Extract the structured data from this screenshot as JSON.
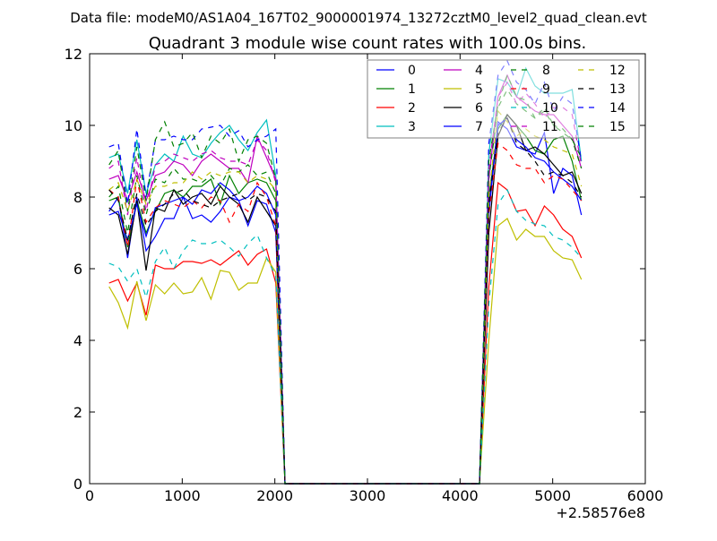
{
  "chart_data": {
    "type": "line",
    "suptitle": "Data file: modeM0/AS1A04_167T02_9000001974_13272cztM0_level2_quad_clean.evt",
    "title": "Quadrant 3 module wise count rates with 100.0s bins.",
    "xlabel": "",
    "ylabel": "",
    "x_offset_label": "+2.58576e8",
    "xlim": [
      0,
      6000
    ],
    "ylim": [
      0,
      12
    ],
    "xticks": [
      "0",
      "1000",
      "2000",
      "3000",
      "4000",
      "5000",
      "6000"
    ],
    "yticks": [
      "0",
      "2",
      "4",
      "6",
      "8",
      "10",
      "12"
    ],
    "grid": false,
    "legend_placement": "top-right",
    "legend_columns": 4,
    "x_start": 210,
    "x_step": 100,
    "series": [
      {
        "name": "0",
        "color": "#0000ff",
        "dash": false,
        "values": [
          7.6,
          8.0,
          6.3,
          8.0,
          6.5,
          6.9,
          7.4,
          7.4,
          8.0,
          7.4,
          7.5,
          7.3,
          7.6,
          8.0,
          7.9,
          7.2,
          7.9,
          7.8,
          7.0,
          0,
          0,
          0,
          0,
          0,
          0,
          0,
          0,
          0,
          0,
          0,
          0,
          0,
          0,
          0,
          0,
          0,
          0,
          0,
          0,
          0,
          0,
          7.5,
          10.1,
          9.9,
          9.4,
          9.3,
          9.2,
          9.8,
          8.1,
          8.8,
          8.6,
          7.5
        ]
      },
      {
        "name": "1",
        "color": "#008000",
        "dash": false,
        "values": [
          7.9,
          8.0,
          6.6,
          7.9,
          7.0,
          7.6,
          8.1,
          8.2,
          8.0,
          8.3,
          8.3,
          8.5,
          7.8,
          8.6,
          8.1,
          8.4,
          8.5,
          8.4,
          7.9,
          0,
          0,
          0,
          0,
          0,
          0,
          0,
          0,
          0,
          0,
          0,
          0,
          0,
          0,
          0,
          0,
          0,
          0,
          0,
          0,
          0,
          0,
          8.0,
          9.9,
          10.3,
          10.0,
          9.7,
          9.3,
          9.2,
          9.6,
          9.7,
          9.0,
          7.9
        ]
      },
      {
        "name": "2",
        "color": "#ff0000",
        "dash": false,
        "values": [
          5.6,
          5.7,
          5.1,
          5.6,
          4.7,
          6.1,
          6.0,
          6.0,
          6.2,
          6.2,
          6.15,
          6.25,
          6.1,
          6.3,
          6.5,
          6.1,
          6.4,
          6.55,
          5.6,
          0,
          0,
          0,
          0,
          0,
          0,
          0,
          0,
          0,
          0,
          0,
          0,
          0,
          0,
          0,
          0,
          0,
          0,
          0,
          0,
          0,
          0,
          5.5,
          8.4,
          8.2,
          7.6,
          7.65,
          7.2,
          7.75,
          7.5,
          7.1,
          6.9,
          6.3
        ]
      },
      {
        "name": "3",
        "color": "#00bfbf",
        "dash": false,
        "values": [
          9.1,
          9.2,
          8.1,
          9.6,
          8.1,
          8.9,
          9.2,
          9.0,
          9.7,
          9.2,
          9.1,
          9.5,
          9.8,
          10.0,
          9.6,
          9.3,
          9.8,
          10.15,
          8.6,
          0,
          0,
          0,
          0,
          0,
          0,
          0,
          0,
          0,
          0,
          0,
          0,
          0,
          0,
          0,
          0,
          0,
          0,
          0,
          0,
          0,
          0,
          9.2,
          11.3,
          11.2,
          10.8,
          11.6,
          11.1,
          10.9,
          10.9,
          10.9,
          11.0,
          9.0
        ]
      },
      {
        "name": "4",
        "color": "#bf00bf",
        "dash": false,
        "values": [
          8.5,
          8.6,
          7.9,
          8.7,
          7.9,
          8.6,
          8.7,
          9.0,
          8.9,
          8.6,
          9.0,
          9.2,
          9.0,
          8.8,
          8.8,
          8.4,
          9.7,
          9.1,
          8.5,
          0,
          0,
          0,
          0,
          0,
          0,
          0,
          0,
          0,
          0,
          0,
          0,
          0,
          0,
          0,
          0,
          0,
          0,
          0,
          0,
          0,
          0,
          8.5,
          10.8,
          11.4,
          10.8,
          10.6,
          10.4,
          10.3,
          10.3,
          10.0,
          9.7,
          8.8
        ]
      },
      {
        "name": "5",
        "color": "#bfbf00",
        "dash": false,
        "values": [
          5.5,
          5.05,
          4.35,
          5.65,
          4.55,
          5.55,
          5.3,
          5.6,
          5.3,
          5.35,
          5.75,
          5.15,
          5.95,
          5.9,
          5.4,
          5.6,
          5.6,
          6.3,
          5.9,
          0,
          0,
          0,
          0,
          0,
          0,
          0,
          0,
          0,
          0,
          0,
          0,
          0,
          0,
          0,
          0,
          0,
          0,
          0,
          0,
          0,
          0,
          4.0,
          7.2,
          7.4,
          6.8,
          7.1,
          6.9,
          6.9,
          6.5,
          6.3,
          6.25,
          5.7
        ]
      },
      {
        "name": "6",
        "color": "#000000",
        "dash": false,
        "values": [
          7.7,
          7.5,
          6.4,
          7.9,
          5.95,
          7.7,
          7.6,
          8.2,
          7.8,
          8.0,
          8.1,
          7.8,
          8.3,
          8.0,
          7.8,
          7.3,
          8.0,
          7.6,
          7.2,
          0,
          0,
          0,
          0,
          0,
          0,
          0,
          0,
          0,
          0,
          0,
          0,
          0,
          0,
          0,
          0,
          0,
          0,
          0,
          0,
          0,
          0,
          7.0,
          9.7,
          10.3,
          10.0,
          9.3,
          9.4,
          9.2,
          8.9,
          8.6,
          8.7,
          8.1
        ]
      },
      {
        "name": "7",
        "color": "#0000ff",
        "dash": false,
        "values": [
          7.5,
          7.6,
          6.8,
          7.8,
          6.9,
          7.7,
          7.8,
          7.9,
          8.0,
          7.8,
          8.2,
          8.1,
          8.4,
          8.2,
          7.9,
          8.0,
          8.3,
          8.1,
          7.5,
          0,
          0,
          0,
          0,
          0,
          0,
          0,
          0,
          0,
          0,
          0,
          0,
          0,
          0,
          0,
          0,
          0,
          0,
          0,
          0,
          0,
          0,
          7.8,
          10.0,
          10.2,
          9.6,
          9.4,
          9.1,
          9.0,
          8.7,
          8.5,
          8.3,
          7.9
        ]
      },
      {
        "name": "8",
        "color": "#008000",
        "dash": true,
        "values": [
          8.0,
          8.3,
          7.0,
          8.6,
          7.5,
          8.5,
          8.4,
          8.8,
          8.5,
          8.5,
          8.4,
          8.6,
          8.3,
          8.8,
          8.7,
          8.9,
          8.6,
          8.7,
          8.1,
          0,
          0,
          0,
          0,
          0,
          0,
          0,
          0,
          0,
          0,
          0,
          0,
          0,
          0,
          0,
          0,
          0,
          0,
          0,
          0,
          0,
          0,
          8.5,
          10.5,
          11.0,
          10.6,
          10.4,
          10.2,
          10.4,
          10.0,
          9.9,
          9.6,
          8.8
        ]
      },
      {
        "name": "9",
        "color": "#ff0000",
        "dash": true,
        "values": [
          8.2,
          8.0,
          6.6,
          8.5,
          7.3,
          7.7,
          7.9,
          7.8,
          7.7,
          7.9,
          7.7,
          8.0,
          7.9,
          7.3,
          7.8,
          7.6,
          8.4,
          8.0,
          7.2,
          0,
          0,
          0,
          0,
          0,
          0,
          0,
          0,
          0,
          0,
          0,
          0,
          0,
          0,
          0,
          0,
          0,
          0,
          0,
          0,
          0,
          0,
          7.5,
          9.5,
          9.3,
          8.9,
          8.8,
          8.8,
          8.4,
          8.6,
          8.5,
          8.2,
          7.9
        ]
      },
      {
        "name": "10",
        "color": "#00bfbf",
        "dash": true,
        "values": [
          6.15,
          6.05,
          5.65,
          6.0,
          5.2,
          6.2,
          6.6,
          6.0,
          6.5,
          6.8,
          6.7,
          6.7,
          6.8,
          6.6,
          6.35,
          6.7,
          6.95,
          6.3,
          5.8,
          0,
          0,
          0,
          0,
          0,
          0,
          0,
          0,
          0,
          0,
          0,
          0,
          0,
          0,
          0,
          0,
          0,
          0,
          0,
          0,
          0,
          0,
          5.0,
          7.8,
          8.2,
          7.6,
          7.35,
          7.25,
          7.2,
          6.9,
          6.8,
          6.6,
          6.3
        ]
      },
      {
        "name": "11",
        "color": "#bf00bf",
        "dash": true,
        "values": [
          8.8,
          9.0,
          7.5,
          9.1,
          7.6,
          8.9,
          9.0,
          9.2,
          9.1,
          9.0,
          9.2,
          9.3,
          9.1,
          9.0,
          9.0,
          8.9,
          9.6,
          9.3,
          8.4,
          0,
          0,
          0,
          0,
          0,
          0,
          0,
          0,
          0,
          0,
          0,
          0,
          0,
          0,
          0,
          0,
          0,
          0,
          0,
          0,
          0,
          0,
          8.8,
          10.8,
          11.2,
          10.6,
          10.9,
          10.6,
          10.2,
          10.5,
          10.5,
          10.3,
          8.9
        ]
      },
      {
        "name": "12",
        "color": "#bfbf00",
        "dash": true,
        "values": [
          8.2,
          8.4,
          7.6,
          8.5,
          7.8,
          8.3,
          8.3,
          8.4,
          8.4,
          8.7,
          8.5,
          8.7,
          8.6,
          8.7,
          8.7,
          8.4,
          8.6,
          8.5,
          8.2,
          0,
          0,
          0,
          0,
          0,
          0,
          0,
          0,
          0,
          0,
          0,
          0,
          0,
          0,
          0,
          0,
          0,
          0,
          0,
          0,
          0,
          0,
          8.0,
          10.4,
          10.1,
          9.7,
          9.9,
          9.7,
          9.6,
          9.4,
          9.3,
          9.2,
          8.3
        ]
      },
      {
        "name": "13",
        "color": "#000000",
        "dash": true,
        "values": [
          8.2,
          7.9,
          6.8,
          8.1,
          7.2,
          7.6,
          7.8,
          8.1,
          8.2,
          7.9,
          7.8,
          7.7,
          7.9,
          8.0,
          8.1,
          7.9,
          8.1,
          8.0,
          7.6,
          0,
          0,
          0,
          0,
          0,
          0,
          0,
          0,
          0,
          0,
          0,
          0,
          0,
          0,
          0,
          0,
          0,
          0,
          0,
          0,
          0,
          0,
          7.8,
          9.8,
          10.2,
          9.5,
          9.3,
          9.0,
          8.6,
          8.7,
          8.6,
          8.4,
          8.0
        ]
      },
      {
        "name": "14",
        "color": "#0000ff",
        "dash": true,
        "values": [
          9.4,
          9.5,
          7.8,
          9.9,
          8.0,
          9.6,
          9.6,
          9.7,
          9.6,
          9.6,
          9.9,
          9.95,
          10.0,
          9.7,
          9.85,
          9.4,
          9.6,
          9.7,
          9.9,
          0,
          0,
          0,
          0,
          0,
          0,
          0,
          0,
          0,
          0,
          0,
          0,
          0,
          0,
          0,
          0,
          0,
          0,
          0,
          0,
          0,
          0,
          9.5,
          11.4,
          11.8,
          11.2,
          11.0,
          10.6,
          11.2,
          10.4,
          10.8,
          10.6,
          9.0
        ]
      },
      {
        "name": "15",
        "color": "#008000",
        "dash": true,
        "values": [
          8.9,
          9.3,
          7.6,
          9.4,
          7.9,
          9.6,
          10.1,
          9.4,
          9.5,
          9.8,
          9.1,
          9.7,
          9.5,
          9.9,
          9.0,
          9.6,
          9.7,
          9.5,
          8.5,
          0,
          0,
          0,
          0,
          0,
          0,
          0,
          0,
          0,
          0,
          0,
          0,
          0,
          0,
          0,
          0,
          0,
          0,
          0,
          0,
          0,
          0,
          9.0,
          10.6,
          11.4,
          10.8,
          10.7,
          10.2,
          10.5,
          10.0,
          9.8,
          9.6,
          9.1
        ]
      }
    ]
  }
}
